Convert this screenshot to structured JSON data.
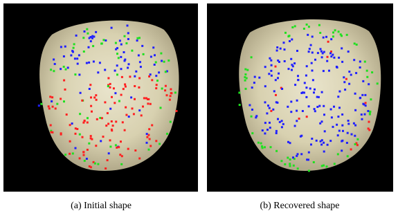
{
  "figure": {
    "panels": [
      {
        "caption": "(a) Initial shape"
      },
      {
        "caption": "(b) Recovered shape"
      }
    ]
  }
}
